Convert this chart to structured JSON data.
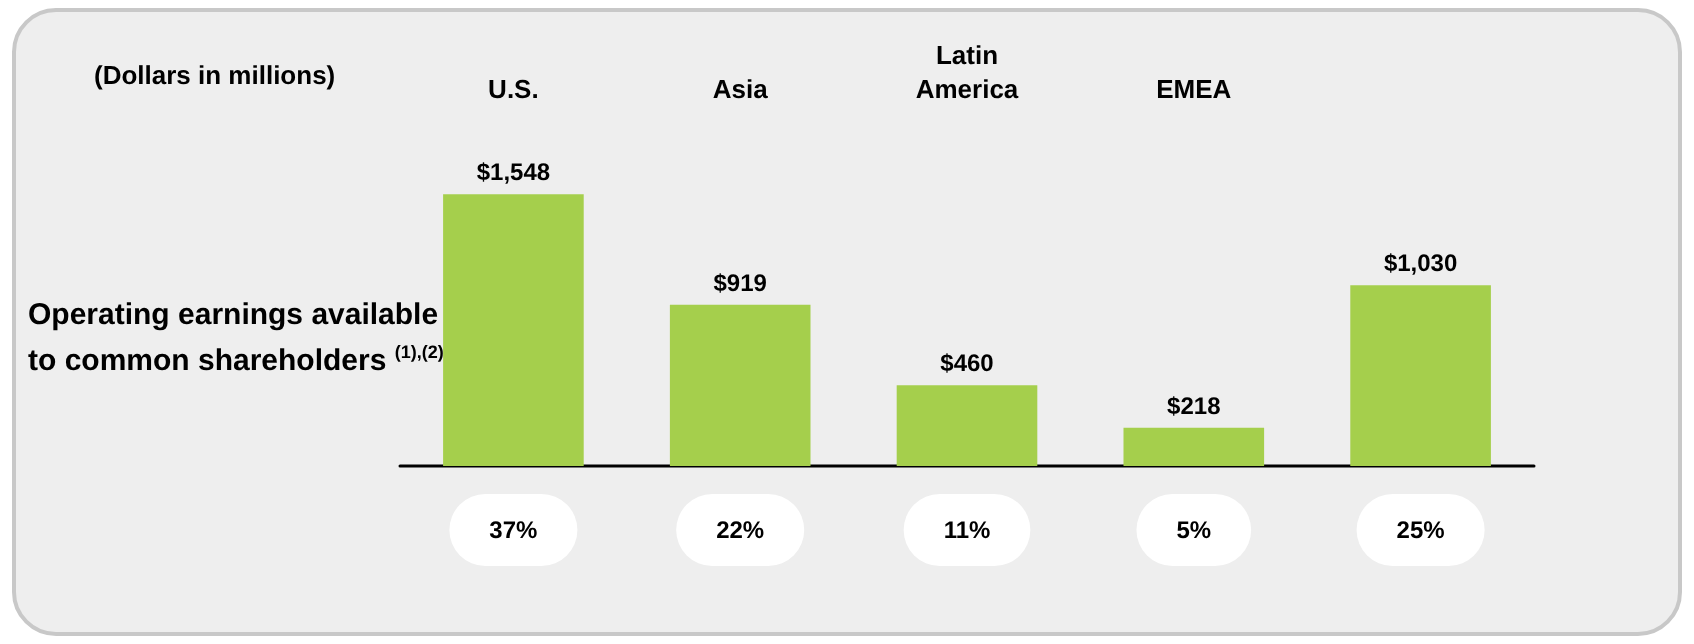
{
  "chart_data": {
    "type": "bar",
    "subtitle": "(Dollars in millions)",
    "ylabel": "Operating earnings available to common shareholders $^{(1),(2)}$",
    "categories": [
      "U.S.",
      "Asia",
      "Latin\nAmerica",
      "EMEA",
      null
    ],
    "values": [
      1548,
      919,
      460,
      218,
      1030
    ],
    "value_labels": [
      "$1,548",
      "$919",
      "$460",
      "$218",
      "$1,030"
    ],
    "color": "#a5cf4c",
    "annotations": [
      "37%",
      "22%",
      "11%",
      "5%",
      "25%"
    ]
  }
}
